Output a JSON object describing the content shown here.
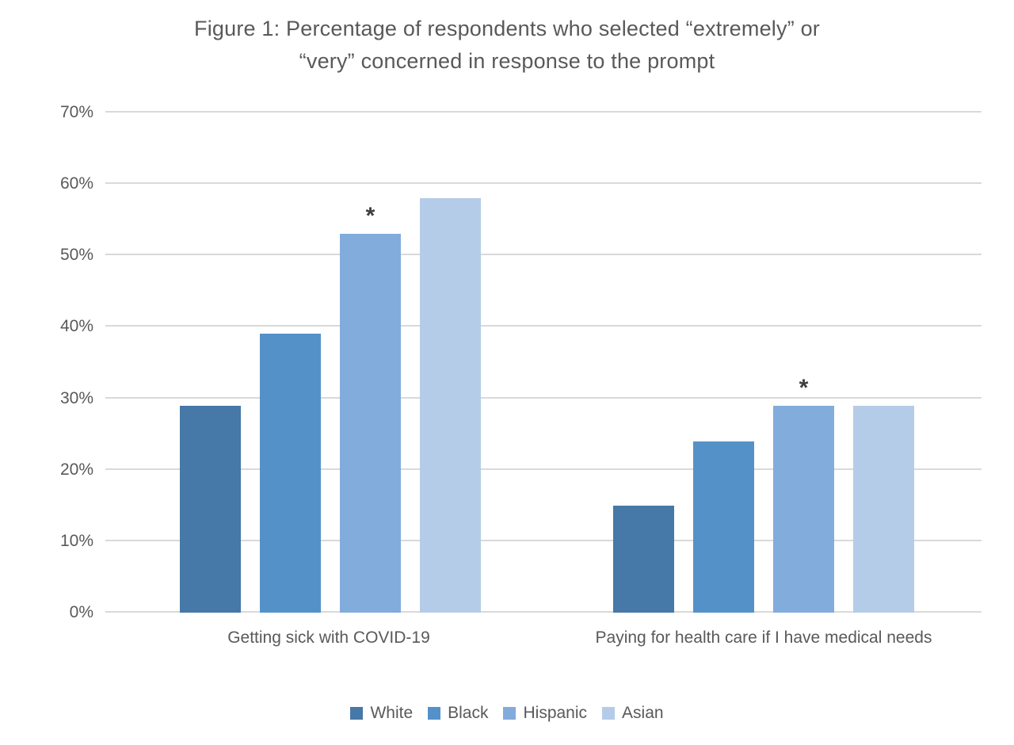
{
  "page": {
    "background": "#ffffff",
    "text_color": "#595959",
    "grid_color": "#d9d9d9",
    "annotation_color": "#3f3f3f"
  },
  "chart_data": {
    "type": "bar",
    "title": "Figure 1: Percentage of respondents who selected “extremely” or “very” concerned in response to the prompt",
    "title_lines": [
      "Figure 1: Percentage of respondents who selected “extremely” or",
      "“very” concerned in response to the prompt"
    ],
    "categories": [
      "Getting sick with COVID-19",
      "Paying for health care if I have medical needs"
    ],
    "series": [
      {
        "name": "White",
        "color": "#4678a8",
        "values": [
          29,
          15
        ]
      },
      {
        "name": "Black",
        "color": "#5591c9",
        "values": [
          39,
          24
        ]
      },
      {
        "name": "Hispanic",
        "color": "#82acdc",
        "values": [
          53,
          29
        ]
      },
      {
        "name": "Asian",
        "color": "#b5cce8",
        "values": [
          58,
          29
        ]
      }
    ],
    "annotations": [
      {
        "category_index": 0,
        "series_index": 2,
        "text": "*"
      },
      {
        "category_index": 1,
        "series_index": 2,
        "text": "*"
      }
    ],
    "xlabel": "",
    "ylabel": "",
    "ylim": [
      0,
      70
    ],
    "ytick_step": 10,
    "yticks": [
      "0%",
      "10%",
      "20%",
      "30%",
      "40%",
      "50%",
      "60%",
      "70%"
    ],
    "grid": true,
    "legend_position": "bottom",
    "legend": [
      "White",
      "Black",
      "Hispanic",
      "Asian"
    ]
  }
}
